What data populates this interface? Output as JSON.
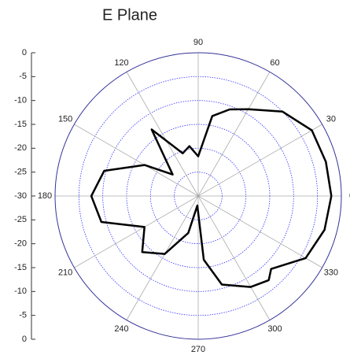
{
  "chart_data": {
    "type": "polar",
    "title": "E Plane",
    "x": [
      0,
      15,
      30,
      45,
      60,
      70,
      80,
      90,
      100,
      110,
      125,
      140,
      150,
      165,
      180,
      195,
      210,
      225,
      240,
      255,
      265,
      275,
      285,
      300,
      310,
      315,
      330,
      345,
      360
    ],
    "series": [
      {
        "name": "E Plane",
        "color": "#000000",
        "values": [
          -2.1,
          -2.3,
          -2.5,
          -5,
          -9,
          -10.7,
          -13,
          -21.7,
          -19.4,
          -20.5,
          -13,
          -23,
          -17,
          -9.6,
          -7.6,
          -9,
          -17,
          -13.4,
          -16,
          -22,
          -28,
          -16.6,
          -10.8,
          -8,
          -7,
          -8.4,
          -4,
          -2.6,
          -2.1
        ]
      }
    ],
    "ylim": [
      -30,
      0
    ],
    "yticks": [
      -30,
      -25,
      -20,
      -15,
      -10,
      -5,
      0
    ],
    "xticks": [
      0,
      30,
      60,
      90,
      120,
      150,
      180,
      210,
      240,
      270,
      300,
      330
    ],
    "grid": true
  }
}
